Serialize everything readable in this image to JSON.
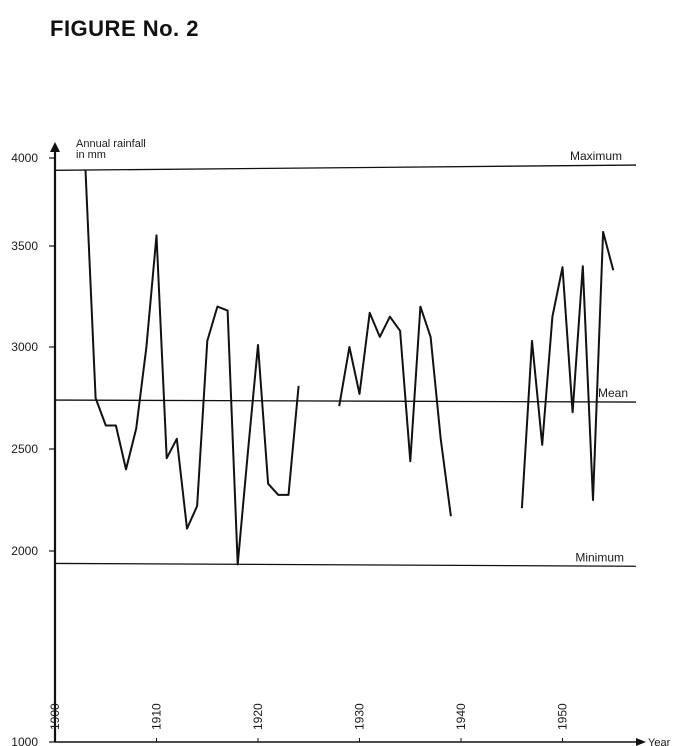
{
  "figure_title": "FIGURE No. 2",
  "chart_data": {
    "type": "line",
    "ylabel_line1": "Annual rainfall",
    "ylabel_line2": "in mm",
    "xlabel": "Year",
    "ylim": [
      1000,
      4000
    ],
    "xlim": [
      1900,
      1958
    ],
    "yticks": [
      1000,
      2000,
      2500,
      3000,
      3500,
      4000
    ],
    "xticks": [
      1900,
      1910,
      1920,
      1930,
      1940,
      1950
    ],
    "reference_lines": [
      {
        "label": "Maximum",
        "y0": 3930,
        "y1": 3960
      },
      {
        "label": "Mean",
        "y0": 2740,
        "y1": 2730
      },
      {
        "label": "Minimum",
        "y0": 1935,
        "y1": 1920
      }
    ],
    "series": [
      {
        "values": [
          [
            1903,
            3930
          ],
          [
            1904,
            2750
          ],
          [
            1905,
            2615
          ],
          [
            1906,
            2615
          ],
          [
            1907,
            2400
          ],
          [
            1908,
            2600
          ],
          [
            1909,
            3000
          ],
          [
            1910,
            3560
          ],
          [
            1911,
            2455
          ],
          [
            1912,
            2550
          ],
          [
            1913,
            2110
          ],
          [
            1914,
            2220
          ],
          [
            1915,
            3030
          ],
          [
            1916,
            3200
          ],
          [
            1917,
            3180
          ],
          [
            1918,
            1930
          ],
          [
            1919,
            2480
          ],
          [
            1920,
            3010
          ],
          [
            1921,
            2330
          ],
          [
            1922,
            2275
          ],
          [
            1923,
            2275
          ],
          [
            1924,
            2810
          ]
        ]
      },
      {
        "values": [
          [
            1928,
            2710
          ],
          [
            1929,
            3000
          ],
          [
            1930,
            2770
          ],
          [
            1931,
            3170
          ],
          [
            1932,
            3050
          ],
          [
            1933,
            3150
          ],
          [
            1934,
            3080
          ],
          [
            1935,
            2440
          ],
          [
            1936,
            3200
          ],
          [
            1937,
            3050
          ],
          [
            1938,
            2550
          ],
          [
            1939,
            2170
          ]
        ]
      },
      {
        "values": [
          [
            1946,
            2210
          ],
          [
            1947,
            3030
          ],
          [
            1948,
            2520
          ],
          [
            1949,
            3150
          ],
          [
            1950,
            3395
          ],
          [
            1951,
            2680
          ],
          [
            1952,
            3400
          ],
          [
            1953,
            2250
          ],
          [
            1954,
            3580
          ],
          [
            1955,
            3380
          ]
        ]
      }
    ]
  }
}
